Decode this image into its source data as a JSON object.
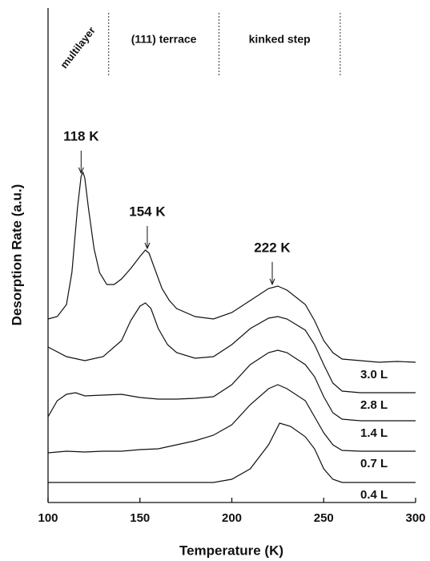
{
  "chart_data": {
    "type": "line",
    "xlabel": "Temperature (K)",
    "ylabel": "Desorption Rate (a.u.)",
    "xlim": [
      100,
      300
    ],
    "xticks": [
      100,
      150,
      200,
      250,
      300
    ],
    "ylim": [
      0,
      617
    ],
    "color": "#111111",
    "regions": {
      "labels": [
        "multilayer",
        "(111) terrace",
        "kinked step"
      ],
      "boundaries": [
        133,
        193,
        259
      ]
    },
    "annotations": [
      {
        "x": 118,
        "text": "118 K"
      },
      {
        "x": 154,
        "text": "154 K"
      },
      {
        "x": 222,
        "text": "222 K"
      }
    ],
    "series": [
      {
        "name": "3.0 L",
        "x": [
          100,
          105,
          110,
          113,
          116,
          118,
          119,
          120,
          122,
          125,
          128,
          132,
          136,
          140,
          145,
          150,
          153,
          155,
          158,
          162,
          166,
          170,
          180,
          190,
          200,
          210,
          220,
          225,
          230,
          240,
          245,
          250,
          255,
          260,
          270,
          280,
          290,
          300
        ],
        "values": [
          229,
          232,
          247,
          287,
          367,
          407,
          412,
          405,
          367,
          317,
          287,
          272,
          272,
          279,
          292,
          307,
          315,
          311,
          292,
          267,
          252,
          242,
          232,
          229,
          237,
          252,
          267,
          270,
          265,
          247,
          227,
          202,
          187,
          179,
          177,
          175,
          176,
          175
        ]
      },
      {
        "name": "2.8 L",
        "x": [
          100,
          110,
          120,
          130,
          140,
          145,
          150,
          153,
          156,
          160,
          165,
          170,
          180,
          190,
          200,
          210,
          220,
          225,
          230,
          240,
          245,
          250,
          255,
          260,
          270,
          300
        ],
        "values": [
          194,
          182,
          177,
          182,
          202,
          227,
          245,
          249,
          242,
          217,
          197,
          187,
          180,
          182,
          197,
          217,
          230,
          232,
          229,
          215,
          197,
          172,
          149,
          139,
          137,
          137
        ]
      },
      {
        "name": "1.4 L",
        "x": [
          100,
          105,
          110,
          115,
          120,
          130,
          140,
          150,
          160,
          170,
          180,
          190,
          200,
          210,
          220,
          225,
          230,
          240,
          245,
          250,
          255,
          260,
          270,
          300
        ],
        "values": [
          107,
          127,
          135,
          137,
          133,
          134,
          135,
          131,
          129,
          129,
          130,
          132,
          147,
          172,
          187,
          190,
          187,
          172,
          157,
          132,
          112,
          104,
          102,
          102
        ]
      },
      {
        "name": "0.7 L",
        "x": [
          100,
          110,
          120,
          130,
          140,
          150,
          160,
          170,
          180,
          190,
          200,
          210,
          220,
          225,
          230,
          240,
          245,
          250,
          255,
          260,
          270,
          300
        ],
        "values": [
          62,
          64,
          63,
          64,
          64,
          66,
          67,
          72,
          77,
          84,
          97,
          122,
          142,
          147,
          142,
          127,
          107,
          87,
          72,
          65,
          64,
          64
        ]
      },
      {
        "name": "0.4 L",
        "x": [
          100,
          150,
          190,
          200,
          210,
          220,
          226,
          232,
          240,
          245,
          250,
          255,
          260,
          300
        ],
        "values": [
          25,
          25,
          25,
          29,
          42,
          72,
          99,
          95,
          82,
          67,
          42,
          29,
          25,
          25
        ]
      }
    ]
  }
}
